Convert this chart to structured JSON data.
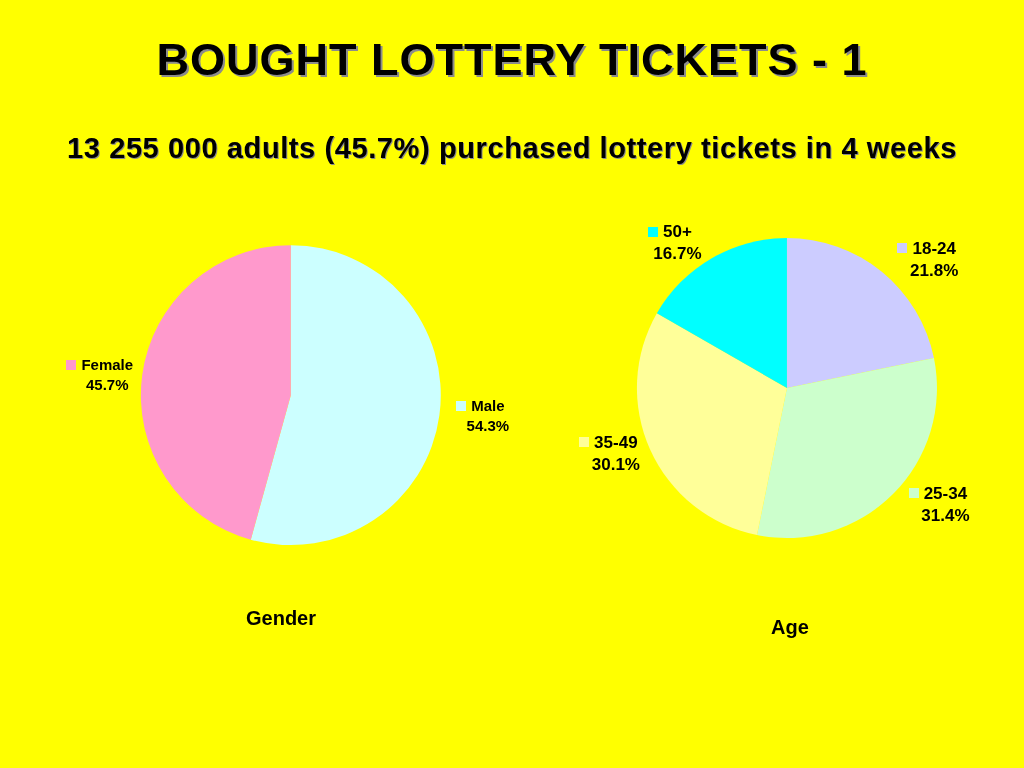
{
  "chart_data": [
    {
      "type": "pie",
      "title": "BOUGHT LOTTERY TICKETS - 1",
      "subtitle": "13 255 000 adults (45.7%) purchased lottery tickets in 4 weeks",
      "xlabel": "Gender",
      "categories": [
        "Male",
        "Female"
      ],
      "values": [
        54.3,
        45.7
      ],
      "colors": [
        "#ccffff",
        "#ff99cc"
      ],
      "value_labels": [
        "54.3%",
        "45.7%"
      ],
      "legend": "left"
    },
    {
      "type": "pie",
      "xlabel": "Age",
      "categories": [
        "18-24",
        "25-34",
        "35-49",
        "50+"
      ],
      "values": [
        21.8,
        31.4,
        30.1,
        16.7
      ],
      "colors": [
        "#ccccff",
        "#ccffcc",
        "#ffff99",
        "#00ffff"
      ],
      "value_labels": [
        "21.8%",
        "31.4%",
        "30.1%",
        "16.7%"
      ],
      "legend": "top"
    }
  ]
}
